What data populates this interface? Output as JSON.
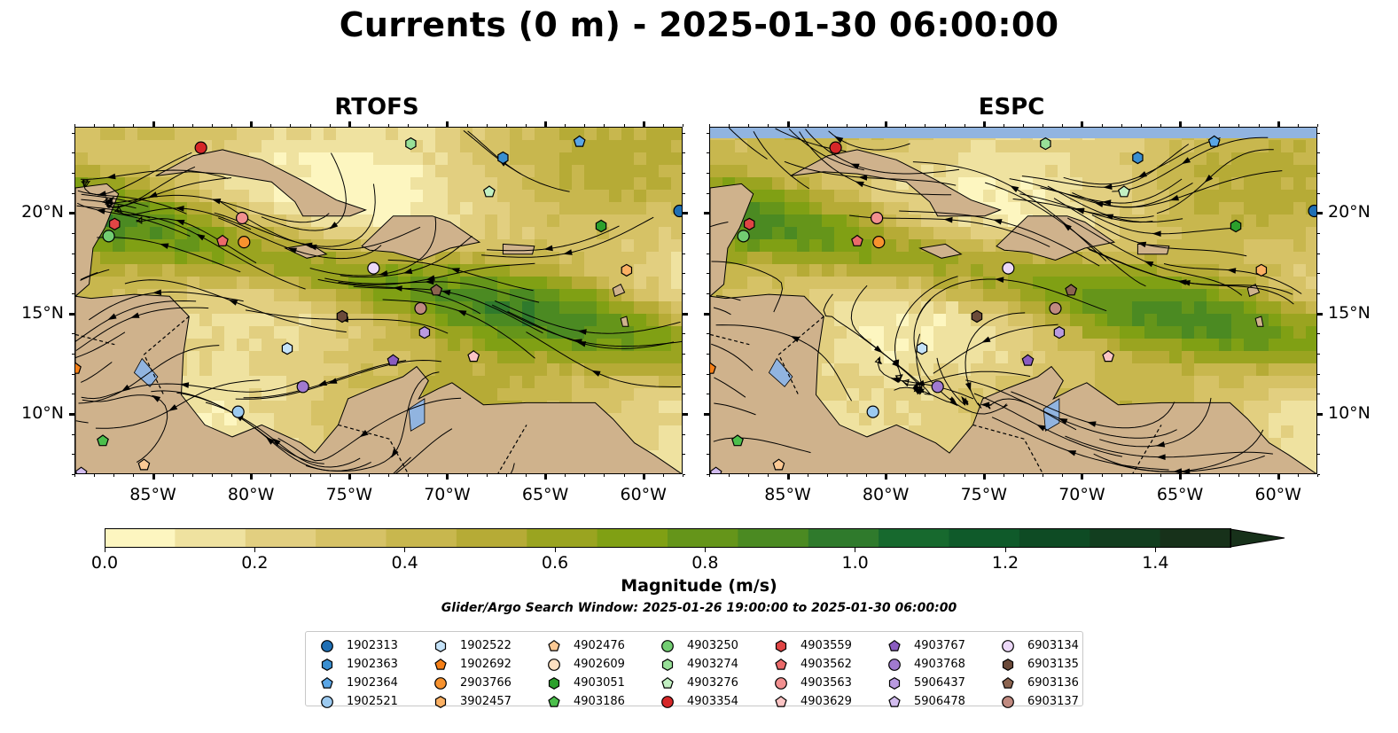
{
  "title": "Currents (0 m) - 2025-01-30 06:00:00",
  "panels": [
    {
      "title": "RTOFS"
    },
    {
      "title": "ESPC"
    }
  ],
  "colors": {
    "land": "#cfb28c",
    "water_blue": "#91b4e0",
    "border": "#000000"
  },
  "chart_data": [
    {
      "type": "heatmap",
      "title": "RTOFS",
      "description_variable": "Current magnitude with streamlines",
      "x_ticks": [
        "85°W",
        "80°W",
        "75°W",
        "70°W",
        "65°W",
        "60°W"
      ],
      "y_ticks": [
        "10°N",
        "15°N",
        "20°N"
      ],
      "xlim": [
        -89,
        -58
      ],
      "ylim": [
        7,
        24.3
      ]
    },
    {
      "type": "heatmap",
      "title": "ESPC",
      "description_variable": "Current magnitude with streamlines",
      "x_ticks": [
        "85°W",
        "80°W",
        "75°W",
        "70°W",
        "65°W",
        "60°W"
      ],
      "y_ticks": [
        "10°N",
        "15°N",
        "20°N"
      ],
      "xlim": [
        -89,
        -58
      ],
      "ylim": [
        7,
        24.3
      ]
    }
  ],
  "colorbar": {
    "title": "Magnitude (m/s)",
    "ticks": [
      "0.0",
      "0.2",
      "0.4",
      "0.6",
      "0.8",
      "1.0",
      "1.2",
      "1.4"
    ],
    "tick_values": [
      0.0,
      0.2,
      0.4,
      0.6,
      0.8,
      1.0,
      1.2,
      1.4
    ],
    "range": [
      0,
      1.5
    ],
    "extend": "max",
    "colors": [
      "#fdf6c0",
      "#efe2a0",
      "#e2cf80",
      "#d6c266",
      "#c8b74e",
      "#b6ab36",
      "#9aa420",
      "#80a014",
      "#65951a",
      "#4b8a22",
      "#2f7a2c",
      "#17692e",
      "#0f5a2a",
      "#0e4b24",
      "#123e1f",
      "#17311a"
    ]
  },
  "search_window": "Glider/Argo Search Window: 2025-01-26 19:00:00 to 2025-01-30 06:00:00",
  "legend": [
    {
      "label": "1902313",
      "marker": "circle",
      "color": "#1f6fb4"
    },
    {
      "label": "1902363",
      "marker": "hexagon",
      "color": "#3a8fd1"
    },
    {
      "label": "1902364",
      "marker": "pentagon",
      "color": "#5aa6e6"
    },
    {
      "label": "1902521",
      "marker": "circle",
      "color": "#9ccaf0"
    },
    {
      "label": "1902522",
      "marker": "hexagon",
      "color": "#c4e2f8"
    },
    {
      "label": "1902692",
      "marker": "pentagon",
      "color": "#f57f17"
    },
    {
      "label": "2903766",
      "marker": "circle",
      "color": "#f7922e"
    },
    {
      "label": "3902457",
      "marker": "hexagon",
      "color": "#fbb063"
    },
    {
      "label": "4902476",
      "marker": "pentagon",
      "color": "#fcc994"
    },
    {
      "label": "4902609",
      "marker": "circle",
      "color": "#fde0c2"
    },
    {
      "label": "4903051",
      "marker": "hexagon",
      "color": "#2ca02c"
    },
    {
      "label": "4903186",
      "marker": "pentagon",
      "color": "#4cbf4c"
    },
    {
      "label": "4903250",
      "marker": "circle",
      "color": "#72cd72"
    },
    {
      "label": "4903274",
      "marker": "hexagon",
      "color": "#98e098"
    },
    {
      "label": "4903276",
      "marker": "pentagon",
      "color": "#c2f0c2"
    },
    {
      "label": "4903354",
      "marker": "circle",
      "color": "#d62728"
    },
    {
      "label": "4903559",
      "marker": "hexagon",
      "color": "#e04545"
    },
    {
      "label": "4903562",
      "marker": "pentagon",
      "color": "#eb6a6a"
    },
    {
      "label": "4903563",
      "marker": "circle",
      "color": "#f29090"
    },
    {
      "label": "4903629",
      "marker": "pentagon",
      "color": "#fbc4c4"
    },
    {
      "label": "4903767",
      "marker": "pentagon",
      "color": "#8a5cc0"
    },
    {
      "label": "4903768",
      "marker": "circle",
      "color": "#a07ad0"
    },
    {
      "label": "5906437",
      "marker": "hexagon",
      "color": "#b99ae0"
    },
    {
      "label": "5906478",
      "marker": "pentagon",
      "color": "#d2bcee"
    },
    {
      "label": "6903134",
      "marker": "circle",
      "color": "#ecd8f8"
    },
    {
      "label": "6903135",
      "marker": "hexagon",
      "color": "#6b4a3a"
    },
    {
      "label": "6903136",
      "marker": "pentagon",
      "color": "#8c6450"
    },
    {
      "label": "6903137",
      "marker": "circle",
      "color": "#c08a80"
    }
  ],
  "platform_positions": [
    {
      "id": "1902313",
      "lon": -58.2,
      "lat": 20.15
    },
    {
      "id": "1902363",
      "lon": -67.2,
      "lat": 22.8
    },
    {
      "id": "1902364",
      "lon": -63.3,
      "lat": 23.6
    },
    {
      "id": "1902521",
      "lon": -80.7,
      "lat": 10.15
    },
    {
      "id": "1902522",
      "lon": -78.2,
      "lat": 13.3
    },
    {
      "id": "1902692",
      "lon": -89.0,
      "lat": 12.3
    },
    {
      "id": "2903766",
      "lon": -80.4,
      "lat": 18.6
    },
    {
      "id": "3902457",
      "lon": -60.9,
      "lat": 17.2
    },
    {
      "id": "4902476",
      "lon": -85.5,
      "lat": 7.5
    },
    {
      "id": "4903051",
      "lon": -62.2,
      "lat": 19.4
    },
    {
      "id": "4903186",
      "lon": -87.6,
      "lat": 8.7
    },
    {
      "id": "4903250",
      "lon": -87.3,
      "lat": 18.9
    },
    {
      "id": "4903274",
      "lon": -71.9,
      "lat": 23.5
    },
    {
      "id": "4903276",
      "lon": -67.9,
      "lat": 21.1
    },
    {
      "id": "4903354",
      "lon": -82.6,
      "lat": 23.3
    },
    {
      "id": "4903559",
      "lon": -87.0,
      "lat": 19.5
    },
    {
      "id": "4903562",
      "lon": -81.5,
      "lat": 18.65
    },
    {
      "id": "4903563",
      "lon": -80.5,
      "lat": 19.8
    },
    {
      "id": "4903629",
      "lon": -68.7,
      "lat": 12.9
    },
    {
      "id": "4903767",
      "lon": -72.8,
      "lat": 12.7
    },
    {
      "id": "4903768",
      "lon": -77.4,
      "lat": 11.4
    },
    {
      "id": "5906437",
      "lon": -71.2,
      "lat": 14.1
    },
    {
      "id": "5906478",
      "lon": -88.7,
      "lat": 7.1
    },
    {
      "id": "6903134",
      "lon": -73.8,
      "lat": 17.3
    },
    {
      "id": "6903135",
      "lon": -75.4,
      "lat": 14.9
    },
    {
      "id": "6903136",
      "lon": -70.6,
      "lat": 16.2
    },
    {
      "id": "6903137",
      "lon": -71.4,
      "lat": 15.3
    }
  ]
}
